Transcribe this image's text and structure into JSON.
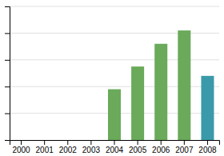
{
  "chart_data": {
    "type": "bar",
    "categories": [
      "2000",
      "2001",
      "2002",
      "2003",
      "2004",
      "2005",
      "2006",
      "2007",
      "2008"
    ],
    "values": [
      0,
      0,
      0,
      0,
      38,
      55,
      72,
      82,
      48
    ],
    "colors": [
      "#6aaa5a",
      "#6aaa5a",
      "#6aaa5a",
      "#6aaa5a",
      "#6aaa5a",
      "#6aaa5a",
      "#6aaa5a",
      "#6aaa5a",
      "#3a9aaa"
    ],
    "ylim": [
      0,
      100
    ],
    "yticks": [
      20,
      40,
      60,
      80,
      100
    ],
    "grid": true,
    "tick_labels": "x"
  }
}
